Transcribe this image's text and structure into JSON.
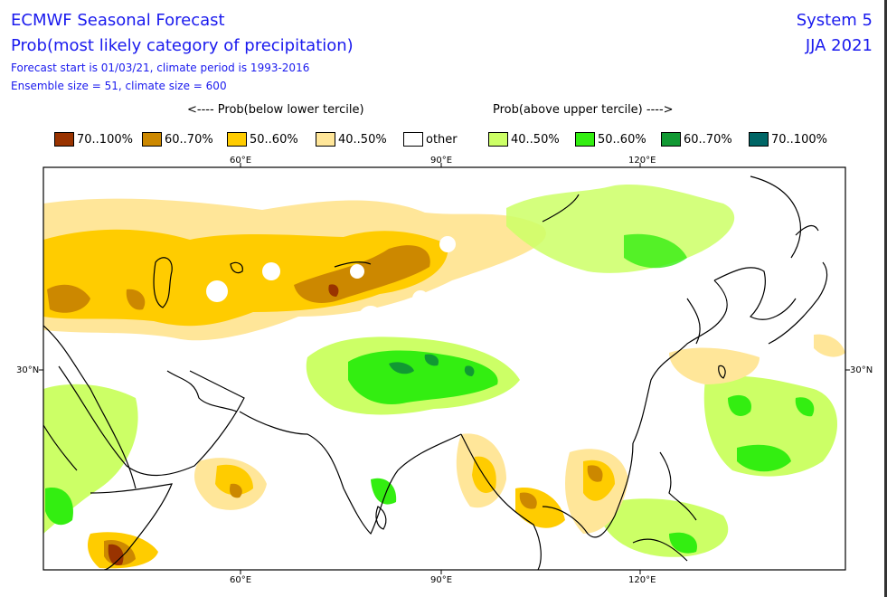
{
  "header": {
    "title": "ECMWF Seasonal Forecast",
    "subtitle": "Prob(most likely category of precipitation)",
    "forecast_start": "Forecast start is 01/03/21, climate period is 1993-2016",
    "ensemble": "Ensemble size = 51, climate size = 600",
    "system": "System 5",
    "season": "JJA 2021"
  },
  "legend": {
    "below_header": "<---- Prob(below lower tercile)",
    "above_header": "Prob(above upper tercile) ---->",
    "items": [
      {
        "label": "70..100%",
        "color": "#993300"
      },
      {
        "label": "60..70%",
        "color": "#cc8800"
      },
      {
        "label": "50..60%",
        "color": "#ffcc00"
      },
      {
        "label": "40..50%",
        "color": "#ffe699"
      },
      {
        "label": "other",
        "color": "#ffffff"
      },
      {
        "label": "40..50%",
        "color": "#ccff66"
      },
      {
        "label": "50..60%",
        "color": "#33ee11"
      },
      {
        "label": "60..70%",
        "color": "#119933"
      },
      {
        "label": "70..100%",
        "color": "#006666"
      }
    ]
  },
  "axes": {
    "top_ticks": [
      "60°E",
      "90°E",
      "120°E"
    ],
    "bottom_ticks": [
      "60°E",
      "90°E",
      "120°E"
    ],
    "left_tick": "30°N",
    "right_tick": "30°N"
  }
}
